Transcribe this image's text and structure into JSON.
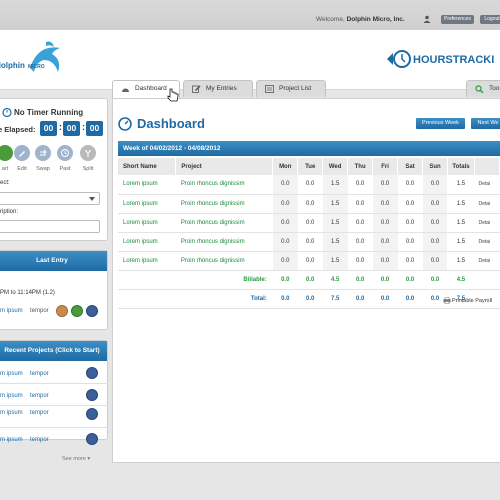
{
  "topbar": {
    "welcome_prefix": "Welcome,",
    "user_name": "Dolphin Micro, Inc.",
    "preferences_label": "Preferences",
    "logout_label": "Logout"
  },
  "header": {
    "left_logo_text": "dolphin",
    "left_logo_text2": "MICRO",
    "right_logo_text": "HOURSTRACKI"
  },
  "tabs": [
    {
      "label": "Dashboard",
      "icon": "dashboard-icon",
      "active": true
    },
    {
      "label": "My Entries",
      "icon": "edit-icon",
      "active": false
    },
    {
      "label": "Project List",
      "icon": "list-icon",
      "active": false
    },
    {
      "label": "Too",
      "icon": "search-icon",
      "active": false
    }
  ],
  "timer": {
    "title": "No Timer Running",
    "elapsed_label": "e Elapsed:",
    "hours": "00",
    "minutes": "00",
    "seconds": "00",
    "controls": [
      {
        "label": "art",
        "icon": "start-icon",
        "color": "#4a9b3a"
      },
      {
        "label": "Edit",
        "icon": "edit-icon",
        "color": "#9fb4cc"
      },
      {
        "label": "Swap",
        "icon": "swap-icon",
        "color": "#9fb4cc"
      },
      {
        "label": "Past",
        "icon": "past-icon",
        "color": "#9fb4cc"
      },
      {
        "label": "Split",
        "icon": "split-icon",
        "color": "#b9b9b9"
      }
    ],
    "project_label": "ect:",
    "description_label": "ription:"
  },
  "last_entry": {
    "title": "Last Entry",
    "time_range": "PM to 11:14PM (1.2)",
    "project": "m ipsum",
    "task": "tempor"
  },
  "recent": {
    "title": "Recent Projects (Click to Start)",
    "rows": [
      {
        "project": "m ipsum",
        "task": "tempor"
      },
      {
        "project": "m ipsum",
        "task": "tempor"
      },
      {
        "project": "m ipsum",
        "task": "tempor"
      },
      {
        "project": "m ipsum",
        "task": "tempor"
      }
    ],
    "see_more": "See more"
  },
  "dashboard": {
    "title": "Dashboard",
    "prev_week": "Previous Week",
    "next_week": "Next We",
    "week_label": "Week of 04/02/2012 - 04/08/2012",
    "columns": [
      "Short Name",
      "Project",
      "Mon",
      "Tue",
      "Wed",
      "Thu",
      "Fri",
      "Sat",
      "Sun",
      "Totals",
      ""
    ],
    "rows": [
      {
        "short": "Lorem ipsum",
        "project": "Proin rhoncus dignissim",
        "mon": "0.0",
        "tue": "0.0",
        "wed": "1.5",
        "thu": "0.0",
        "fri": "0.0",
        "sat": "0.0",
        "sun": "0.0",
        "total": "1.5",
        "detail": "Detai"
      },
      {
        "short": "Lorem ipsum",
        "project": "Proin rhoncus dignissim",
        "mon": "0.0",
        "tue": "0.0",
        "wed": "1.5",
        "thu": "0.0",
        "fri": "0.0",
        "sat": "0.0",
        "sun": "0.0",
        "total": "1.5",
        "detail": "Detai"
      },
      {
        "short": "Lorem ipsum",
        "project": "Proin rhoncus dignissim",
        "mon": "0.0",
        "tue": "0.0",
        "wed": "1.5",
        "thu": "0.0",
        "fri": "0.0",
        "sat": "0.0",
        "sun": "0.0",
        "total": "1.5",
        "detail": "Detai"
      },
      {
        "short": "Lorem ipsum",
        "project": "Proin rhoncus dignissim",
        "mon": "0.0",
        "tue": "0.0",
        "wed": "1.5",
        "thu": "0.0",
        "fri": "0.0",
        "sat": "0.0",
        "sun": "0.0",
        "total": "1.5",
        "detail": "Detai"
      },
      {
        "short": "Lorem ipsum",
        "project": "Proin rhoncus dignissim",
        "mon": "0.0",
        "tue": "0.0",
        "wed": "1.5",
        "thu": "0.0",
        "fri": "0.0",
        "sat": "0.0",
        "sun": "0.0",
        "total": "1.5",
        "detail": "Detai"
      }
    ],
    "billable": {
      "label": "Billable:",
      "mon": "0.0",
      "tue": "0.0",
      "wed": "4.5",
      "thu": "0.0",
      "fri": "0.0",
      "sat": "0.0",
      "sun": "0.0",
      "total": "4.5"
    },
    "total": {
      "label": "Total:",
      "mon": "0.0",
      "tue": "0.0",
      "wed": "7.5",
      "thu": "0.0",
      "fri": "0.0",
      "sat": "0.0",
      "sun": "0.0",
      "total": "7.5"
    },
    "printable": "Printable Payroll"
  },
  "colors": {
    "accent_blue": "#1f6aa3",
    "link_green": "#1a8a3a",
    "billable_green": "#2a9a40"
  }
}
